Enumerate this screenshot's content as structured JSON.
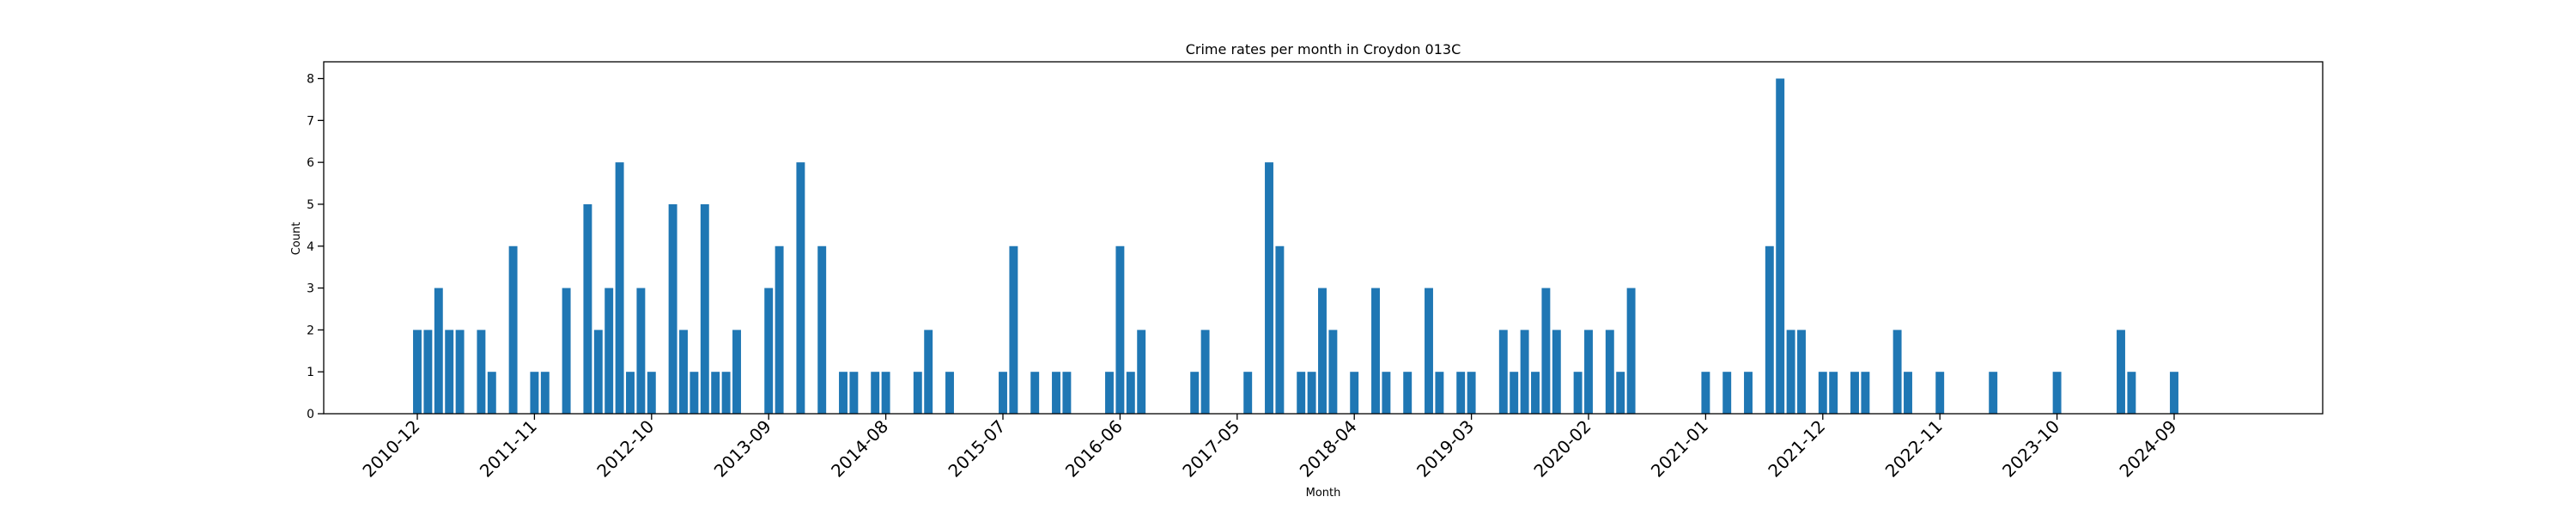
{
  "chart_data": {
    "type": "bar",
    "title": "Crime rates per month in Croydon 013C",
    "xlabel": "Month",
    "ylabel": "Count",
    "ylim": [
      0,
      8.4
    ],
    "yticks": [
      0,
      1,
      2,
      3,
      4,
      5,
      6,
      7,
      8
    ],
    "xticks": [
      "2010-12",
      "2011-11",
      "2012-10",
      "2013-09",
      "2014-08",
      "2015-07",
      "2016-06",
      "2017-05",
      "2018-04",
      "2019-03",
      "2020-02",
      "2021-01",
      "2021-12",
      "2022-11",
      "2023-10",
      "2024-09"
    ],
    "grid": false,
    "color": "#1f77b4",
    "categories": [
      "2010-12",
      "2011-01",
      "2011-02",
      "2011-03",
      "2011-04",
      "2011-06",
      "2011-07",
      "2011-09",
      "2011-11",
      "2011-12",
      "2012-02",
      "2012-04",
      "2012-05",
      "2012-06",
      "2012-07",
      "2012-08",
      "2012-09",
      "2012-10",
      "2012-12",
      "2013-01",
      "2013-02",
      "2013-03",
      "2013-04",
      "2013-05",
      "2013-06",
      "2013-09",
      "2013-10",
      "2013-12",
      "2014-02",
      "2014-04",
      "2014-05",
      "2014-07",
      "2014-08",
      "2014-11",
      "2014-12",
      "2015-02",
      "2015-07",
      "2015-08",
      "2015-10",
      "2015-12",
      "2016-01",
      "2016-05",
      "2016-06",
      "2016-07",
      "2016-08",
      "2017-01",
      "2017-02",
      "2017-06",
      "2017-08",
      "2017-09",
      "2017-11",
      "2017-12",
      "2018-01",
      "2018-02",
      "2018-04",
      "2018-06",
      "2018-07",
      "2018-09",
      "2018-11",
      "2018-12",
      "2019-02",
      "2019-03",
      "2019-06",
      "2019-07",
      "2019-08",
      "2019-09",
      "2019-10",
      "2019-11",
      "2020-01",
      "2020-02",
      "2020-04",
      "2020-05",
      "2020-06",
      "2021-01",
      "2021-03",
      "2021-05",
      "2021-07",
      "2021-08",
      "2021-09",
      "2021-10",
      "2021-12",
      "2022-01",
      "2022-03",
      "2022-04",
      "2022-07",
      "2022-08",
      "2022-11",
      "2023-04",
      "2023-10",
      "2024-04",
      "2024-05",
      "2024-09"
    ],
    "values": [
      2,
      2,
      3,
      2,
      2,
      2,
      1,
      4,
      1,
      1,
      3,
      5,
      2,
      3,
      6,
      1,
      3,
      1,
      5,
      2,
      1,
      5,
      1,
      1,
      2,
      3,
      4,
      6,
      4,
      1,
      1,
      1,
      1,
      1,
      2,
      1,
      1,
      4,
      1,
      1,
      1,
      1,
      4,
      1,
      2,
      1,
      2,
      1,
      6,
      4,
      1,
      1,
      3,
      2,
      1,
      3,
      1,
      1,
      3,
      1,
      1,
      1,
      2,
      1,
      2,
      1,
      3,
      2,
      1,
      2,
      2,
      1,
      3,
      1,
      1,
      1,
      4,
      8,
      2,
      2,
      1,
      1,
      1,
      1,
      2,
      1,
      1,
      1,
      1,
      2,
      1,
      1
    ]
  }
}
